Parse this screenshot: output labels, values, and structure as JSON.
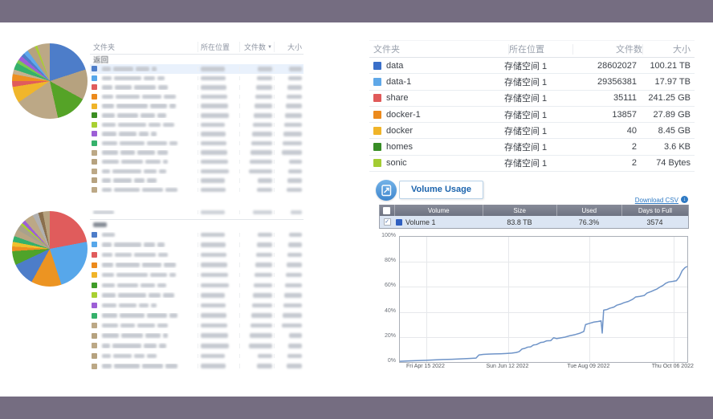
{
  "frame": {
    "bar_color": "#756d81"
  },
  "left": {
    "pie1": {
      "slices": [
        {
          "color": "#4d7dc9",
          "value": 20
        },
        {
          "color": "#b6a27f",
          "value": 13
        },
        {
          "color": "#55a327",
          "value": 13.5
        },
        {
          "color": "#bca886",
          "value": 19
        },
        {
          "color": "#f0b62b",
          "value": 7
        },
        {
          "color": "#e05c5c",
          "value": 2.5
        },
        {
          "color": "#ee8f20",
          "value": 3
        },
        {
          "color": "#c4b190",
          "value": 2
        },
        {
          "color": "#35b16b",
          "value": 3
        },
        {
          "color": "#79c94f",
          "value": 1.5
        },
        {
          "color": "#9d5fd6",
          "value": 2
        },
        {
          "color": "#4d7dc9",
          "value": 1.5
        },
        {
          "color": "#5fa8ec",
          "value": 2
        },
        {
          "color": "#b6a27f",
          "value": 3.5
        },
        {
          "color": "#a8d032",
          "value": 1
        },
        {
          "color": "#bca886",
          "value": 5.5
        }
      ]
    },
    "pie2": {
      "slices": [
        {
          "color": "#e05c5c",
          "value": 22
        },
        {
          "color": "#57a7ea",
          "value": 23
        },
        {
          "color": "#ec9422",
          "value": 13
        },
        {
          "color": "#4d7dc9",
          "value": 10
        },
        {
          "color": "#4fa32a",
          "value": 6
        },
        {
          "color": "#ee8f20",
          "value": 2
        },
        {
          "color": "#f0c02c",
          "value": 2
        },
        {
          "color": "#35b16b",
          "value": 2.5
        },
        {
          "color": "#b9a583",
          "value": 3
        },
        {
          "color": "#a8a18c",
          "value": 2.5
        },
        {
          "color": "#a8d032",
          "value": 1
        },
        {
          "color": "#9d5fd6",
          "value": 1.5
        },
        {
          "color": "#bca886",
          "value": 4
        },
        {
          "color": "#b0b0b0",
          "value": 2.5
        },
        {
          "color": "#8a6f4d",
          "value": 2
        },
        {
          "color": "#b6a27f",
          "value": 3
        }
      ]
    },
    "table1": {
      "headers": {
        "folder": "文件夹",
        "location": "所在位置",
        "count": "文件数",
        "size": "大小"
      },
      "sort_indicator": "▼",
      "back_label": "返回",
      "row_colors": [
        "#4d7dc9",
        "#57a7ea",
        "#e05c5c",
        "#ec8a1c",
        "#f0b429",
        "#3b8d22",
        "#a8d032",
        "#9d5fd6",
        "#35b16b",
        "#bca886",
        "#b6a27f",
        "#bca886",
        "#b6a27f",
        "#bca886"
      ]
    },
    "table2": {
      "row_colors": [
        "#4d7dc9",
        "#57a7ea",
        "#e05c5c",
        "#ec8a1c",
        "#f0b429",
        "#3f9c28",
        "#a8d032",
        "#9d5fd6",
        "#35b16b",
        "#bca886",
        "#b6a27f",
        "#bca886",
        "#b6a27f",
        "#bca886"
      ]
    }
  },
  "right": {
    "folders": {
      "headers": {
        "folder": "文件夹",
        "location": "所在位置",
        "count": "文件数",
        "size": "大小"
      },
      "rows": [
        {
          "color": "#3a6fc9",
          "name": "data",
          "location": "存储空间 1",
          "count": "28602027",
          "size": "100.21 TB"
        },
        {
          "color": "#5fa8e8",
          "name": "data-1",
          "location": "存储空间 1",
          "count": "29356381",
          "size": "17.97 TB"
        },
        {
          "color": "#e05a5a",
          "name": "share",
          "location": "存储空间 1",
          "count": "35111",
          "size": "241.25 GB"
        },
        {
          "color": "#ec8a1c",
          "name": "docker-1",
          "location": "存储空间 1",
          "count": "13857",
          "size": "27.89 GB"
        },
        {
          "color": "#f0b429",
          "name": "docker",
          "location": "存储空间 1",
          "count": "40",
          "size": "8.45 GB"
        },
        {
          "color": "#378d25",
          "name": "homes",
          "location": "存储空间 1",
          "count": "2",
          "size": "3.6 KB"
        },
        {
          "color": "#a3cc33",
          "name": "sonic",
          "location": "存储空间 1",
          "count": "2",
          "size": "74 Bytes"
        }
      ]
    },
    "volume_usage": {
      "title": "Volume Usage",
      "download_csv_label": "Download CSV",
      "table": {
        "headers": [
          "Volume",
          "Size",
          "Used",
          "Days to Full"
        ],
        "rows": [
          {
            "color": "#2f5fc0",
            "name": "Volume 1",
            "size": "83.8 TB",
            "used": "76.3%",
            "days_to_full": "3574",
            "checked": true
          }
        ]
      }
    }
  },
  "chart_data": {
    "type": "line",
    "series": [
      {
        "name": "Volume 1",
        "color": "#6f94c8"
      }
    ],
    "ylim": [
      0,
      100
    ],
    "grid": true,
    "y_ticks": [
      "0%",
      "20%",
      "40%",
      "60%",
      "80%",
      "100%"
    ],
    "x_ticks": [
      "Fri Apr 15 2022",
      "Sun Jun 12 2022",
      "Tue Aug 09 2022",
      "Thu Oct 06 2022"
    ],
    "x_tick_positions": [
      0.092,
      0.377,
      0.659,
      0.952
    ],
    "points": [
      [
        0,
        0.6
      ],
      [
        3,
        0.9
      ],
      [
        6,
        1.1
      ],
      [
        9,
        1.4
      ],
      [
        12,
        1.7
      ],
      [
        15,
        2
      ],
      [
        18,
        2.2
      ],
      [
        21,
        2.5
      ],
      [
        24,
        2.8
      ],
      [
        26.5,
        3.1
      ],
      [
        27.5,
        5.6
      ],
      [
        29,
        6.1
      ],
      [
        31,
        6.3
      ],
      [
        33,
        6.5
      ],
      [
        35,
        6.6
      ],
      [
        37,
        6.8
      ],
      [
        39,
        7.1
      ],
      [
        40.5,
        7.6
      ],
      [
        41.5,
        8.3
      ],
      [
        42.5,
        10.4
      ],
      [
        43.5,
        10.9
      ],
      [
        44.5,
        11.9
      ],
      [
        45.5,
        12.1
      ],
      [
        46.5,
        13.6
      ],
      [
        47.5,
        13.9
      ],
      [
        49,
        15.6
      ],
      [
        50,
        15.9
      ],
      [
        51,
        16.9
      ],
      [
        52.5,
        17.1
      ],
      [
        53.5,
        19.4
      ],
      [
        54.5,
        18.7
      ],
      [
        56,
        19.3
      ],
      [
        57.5,
        19.9
      ],
      [
        59,
        20.9
      ],
      [
        61,
        21.9
      ],
      [
        62.5,
        22.9
      ],
      [
        64,
        24.4
      ],
      [
        64.6,
        29.9
      ],
      [
        66,
        30.9
      ],
      [
        67.5,
        31.9
      ],
      [
        69,
        32.4
      ],
      [
        70,
        32.9
      ],
      [
        70.4,
        23.1
      ],
      [
        70.9,
        41.4
      ],
      [
        72,
        41.9
      ],
      [
        73,
        42.9
      ],
      [
        74.5,
        43.9
      ],
      [
        75.5,
        45.4
      ],
      [
        77,
        46.4
      ],
      [
        78,
        47.4
      ],
      [
        79.5,
        48.4
      ],
      [
        81,
        50.1
      ],
      [
        82,
        51.9
      ],
      [
        83.5,
        52.4
      ],
      [
        85,
        53.1
      ],
      [
        86,
        55.1
      ],
      [
        87.5,
        56.4
      ],
      [
        88.5,
        57.4
      ],
      [
        89.5,
        58.4
      ],
      [
        90.5,
        59.9
      ],
      [
        91.5,
        61.1
      ],
      [
        92.5,
        62.9
      ],
      [
        93.5,
        63.9
      ],
      [
        95,
        64.4
      ],
      [
        96.2,
        64.9
      ],
      [
        97.2,
        67.9
      ],
      [
        98.2,
        72.9
      ],
      [
        99.2,
        75.4
      ],
      [
        100,
        76.3
      ]
    ]
  }
}
